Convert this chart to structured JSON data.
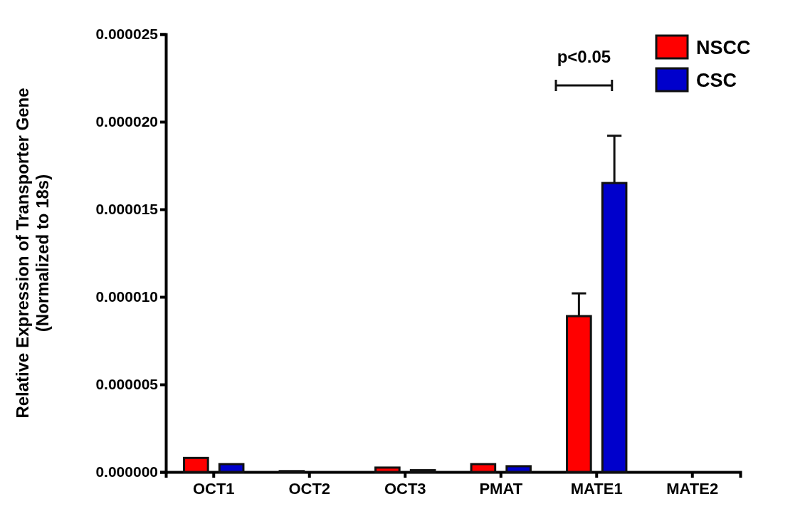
{
  "chart_data": {
    "type": "bar",
    "ylabel": "Relative Expression of Transporter Gene\n(Normalized to 18s)",
    "categories": [
      "OCT1",
      "OCT2",
      "OCT3",
      "PMAT",
      "MATE1",
      "MATE2"
    ],
    "series": [
      {
        "name": "NSCC",
        "color": "#ff0000",
        "values": [
          8e-07,
          5e-08,
          2.5e-07,
          4.5e-07,
          8.9e-06,
          0
        ],
        "errors": [
          null,
          null,
          null,
          null,
          1.3e-06,
          null
        ]
      },
      {
        "name": "CSC",
        "color": "#0000cc",
        "values": [
          4.5e-07,
          0,
          1e-07,
          3.3e-07,
          1.65e-05,
          0
        ],
        "errors": [
          null,
          null,
          null,
          null,
          2.7e-06,
          null
        ]
      }
    ],
    "ylim": [
      0,
      2.5e-05
    ],
    "yticks": [
      {
        "value": 0,
        "label": "0.000000"
      },
      {
        "value": 5e-06,
        "label": "0.000005"
      },
      {
        "value": 1e-05,
        "label": "0.000010"
      },
      {
        "value": 1.5e-05,
        "label": "0.000015"
      },
      {
        "value": 2e-05,
        "label": "0.000020"
      },
      {
        "value": 2.5e-05,
        "label": "0.000025"
      }
    ],
    "annotations": [
      "p<0.05"
    ],
    "legend": "top right"
  }
}
